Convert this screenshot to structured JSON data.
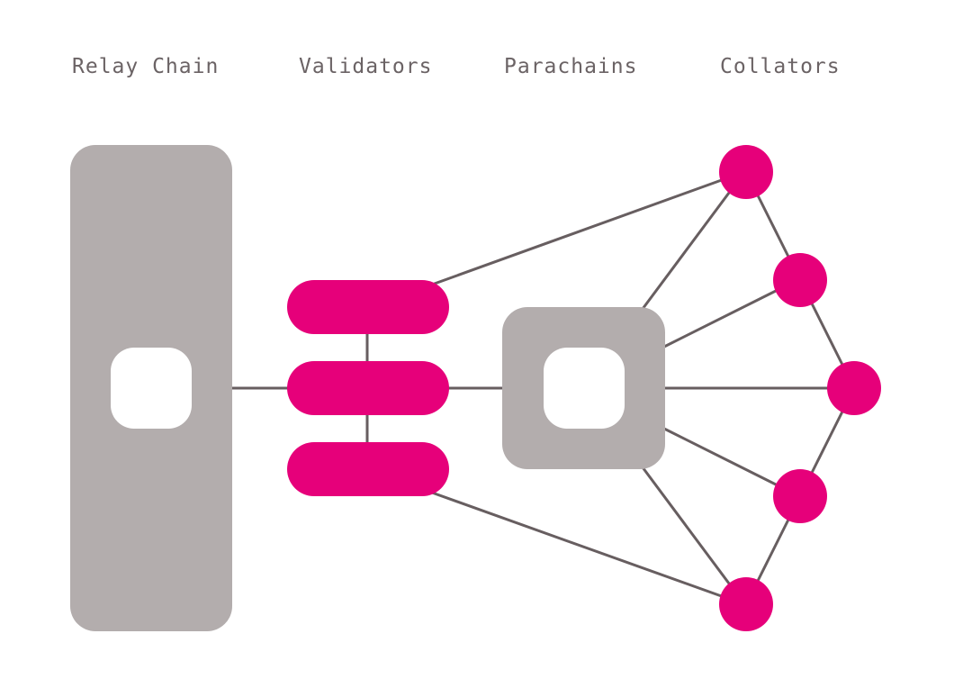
{
  "labels": {
    "relay_chain": "Relay Chain",
    "validators": "Validators",
    "parachains": "Parachains",
    "collators": "Collators"
  },
  "colors": {
    "accent": "#e6007a",
    "block": "#b3adad",
    "line": "#675e60",
    "label": "#6b6365",
    "background": "#ffffff"
  }
}
